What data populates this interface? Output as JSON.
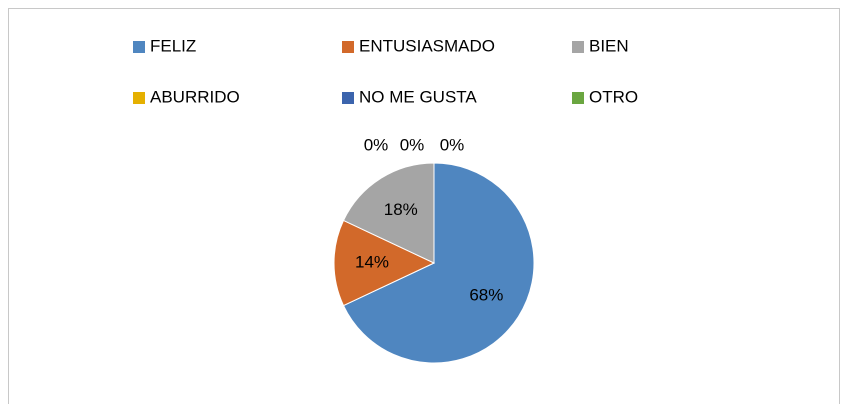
{
  "chart_data": {
    "type": "pie",
    "categories": [
      "FELIZ",
      "ENTUSIASMADO",
      "BIEN",
      "ABURRIDO",
      "NO ME GUSTA",
      "OTRO"
    ],
    "values": [
      68,
      14,
      18,
      0,
      0,
      0
    ],
    "value_labels": [
      "68%",
      "14%",
      "18%",
      "0%",
      "0%",
      "0%"
    ],
    "colors": [
      "#4f86c0",
      "#d2692a",
      "#a5a5a5",
      "#e5b000",
      "#3b64ad",
      "#6aa640"
    ],
    "legend": "top"
  }
}
